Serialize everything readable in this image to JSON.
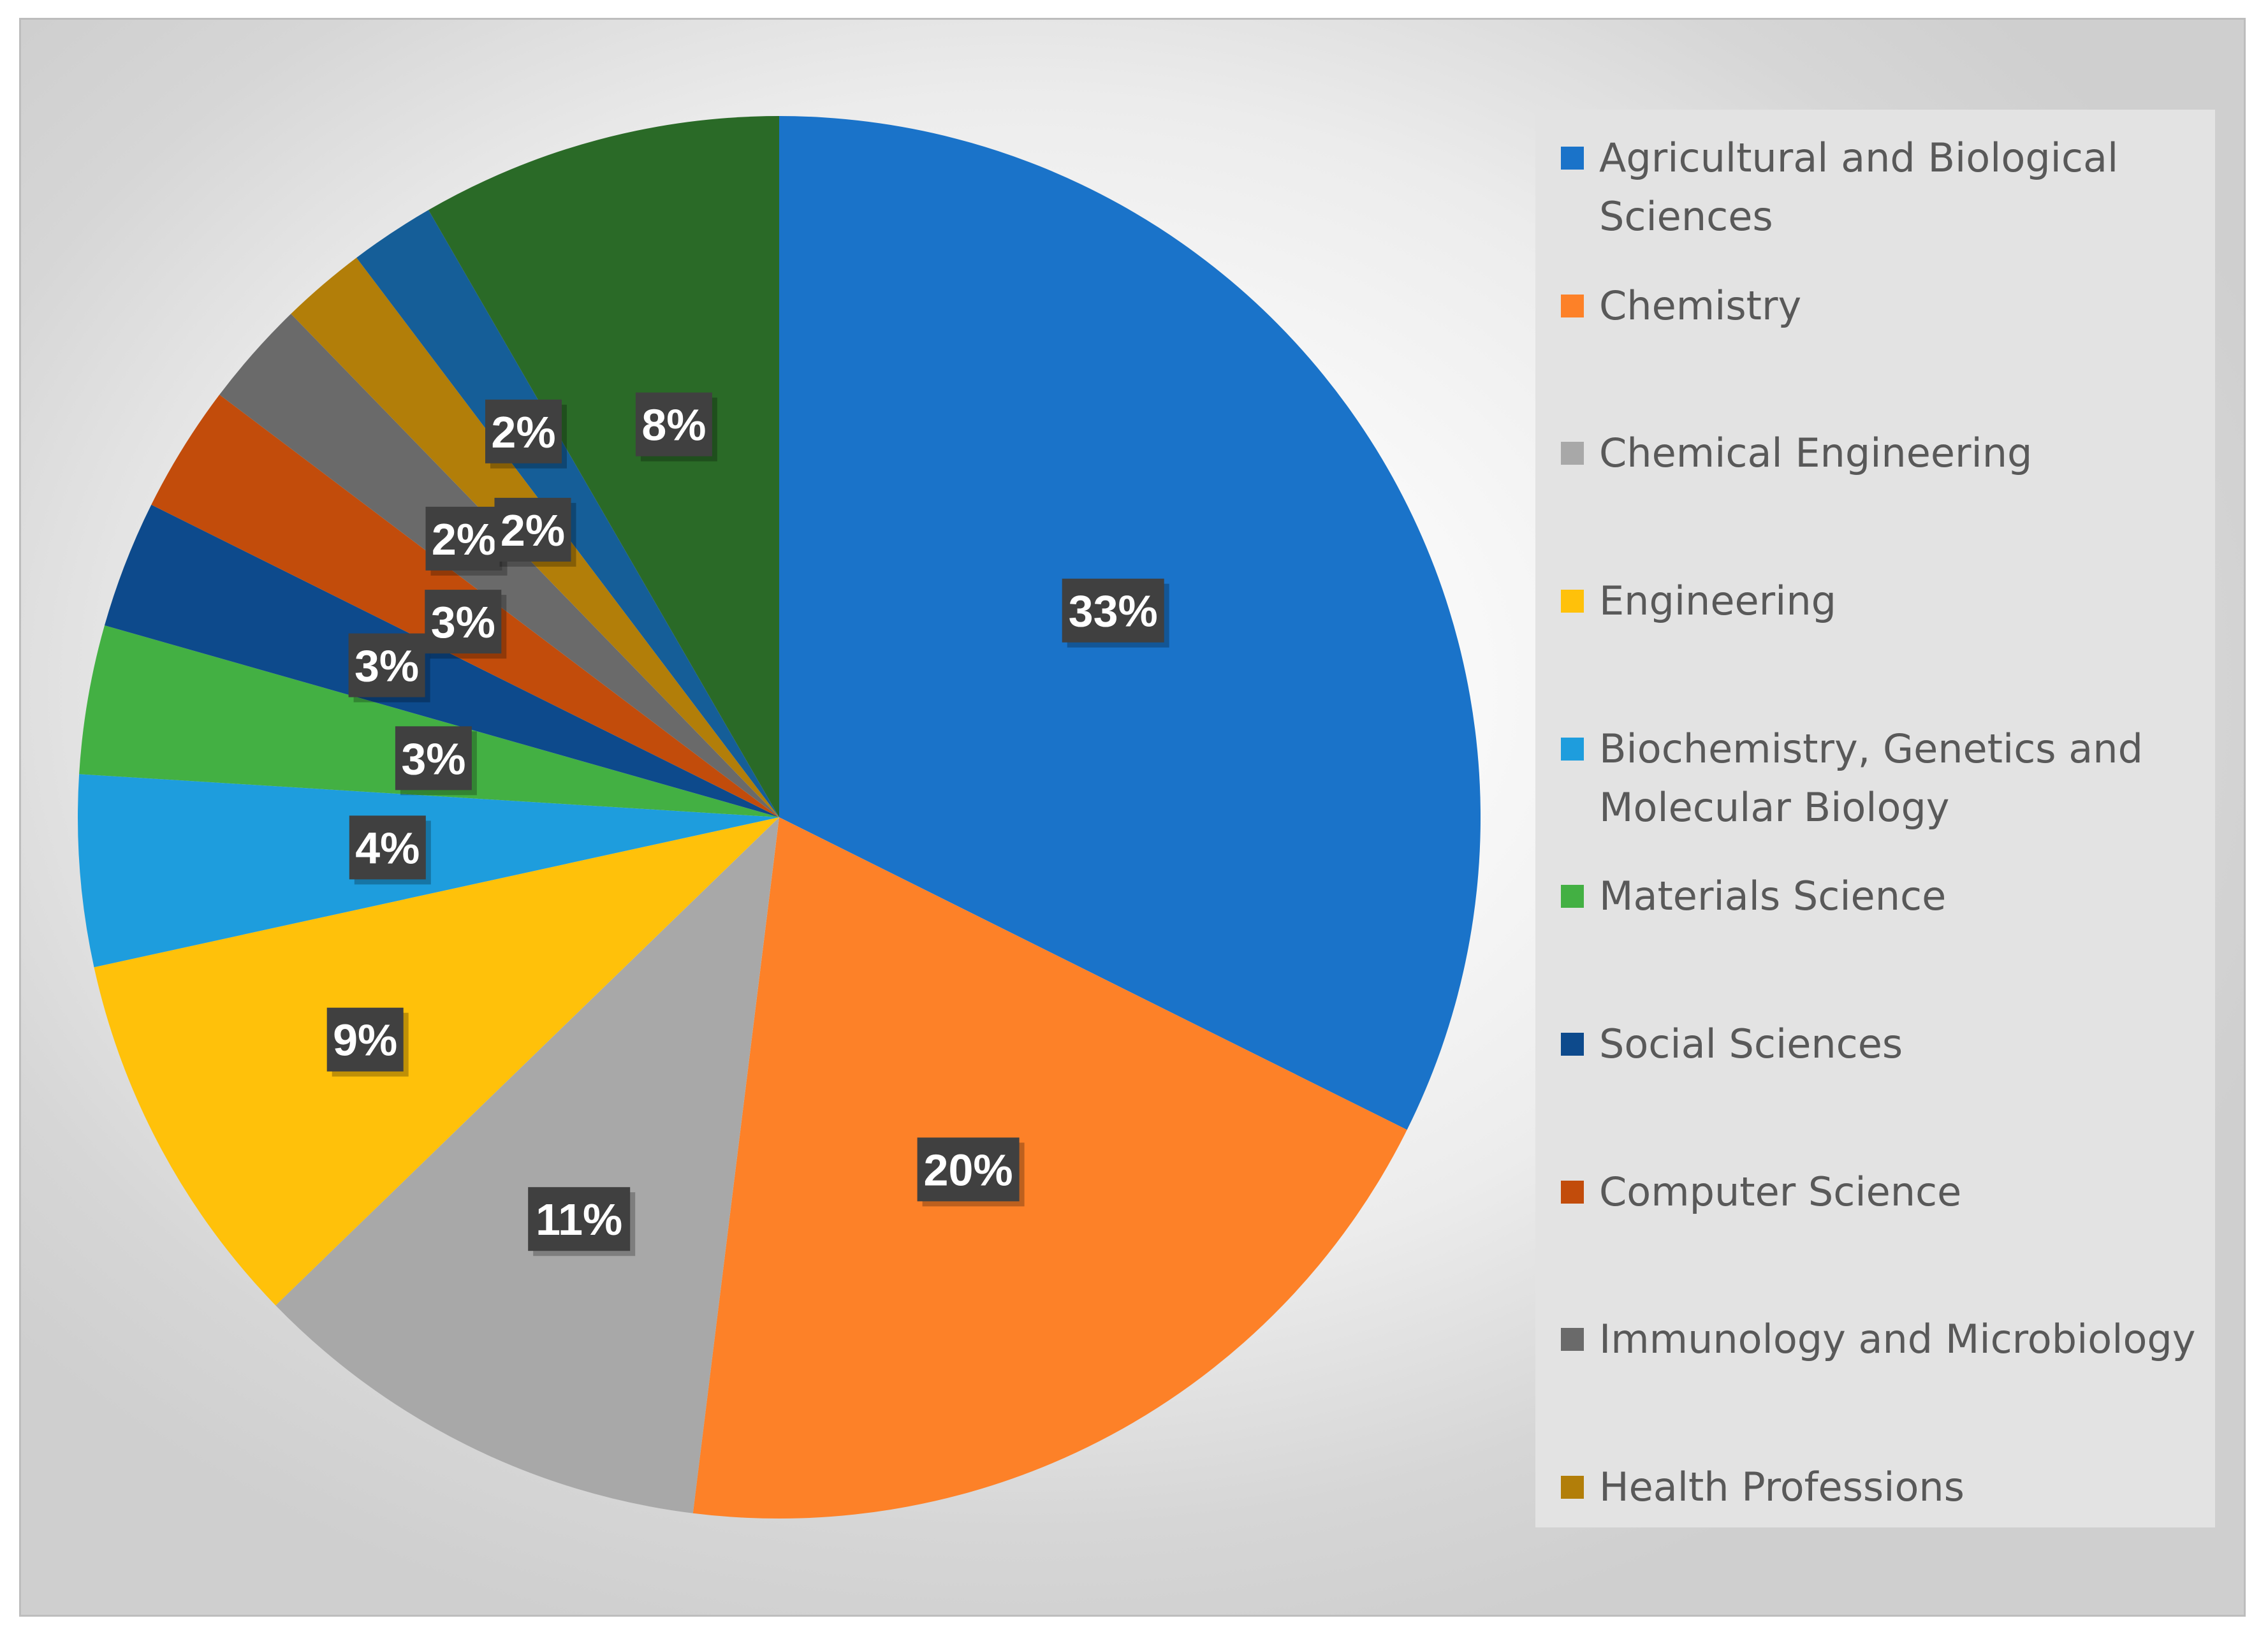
{
  "chart_data": {
    "type": "pie",
    "title": "",
    "start_angle_deg": 0,
    "direction": "clockwise",
    "slices": [
      {
        "label": "Agricultural and Biological Sciences",
        "value": 33,
        "data_label": "33%",
        "color": "#1a73c9"
      },
      {
        "label": "Chemistry",
        "value": 20,
        "data_label": "20%",
        "color": "#fd8128"
      },
      {
        "label": "Chemical Engineering",
        "value": 11,
        "data_label": "11%",
        "color": "#a8a8a8"
      },
      {
        "label": "Engineering",
        "value": 9,
        "data_label": "9%",
        "color": "#ffc10a"
      },
      {
        "label": "Biochemistry, Genetics and Molecular Biology",
        "value": 4.5,
        "data_label": "4%",
        "color": "#1e9ddd"
      },
      {
        "label": "Materials Science",
        "value": 3.5,
        "data_label": "3%",
        "color": "#43b043"
      },
      {
        "label": "Social Sciences",
        "value": 3,
        "data_label": "3%",
        "color": "#0d4a8c"
      },
      {
        "label": "Computer Science",
        "value": 3,
        "data_label": "3%",
        "color": "#c24c0b"
      },
      {
        "label": "Immunology and Microbiology",
        "value": 2.5,
        "data_label": "2%",
        "color": "#6a6a6a"
      },
      {
        "label": "Health Professions",
        "value": 2,
        "data_label": "2%",
        "color": "#b27e09"
      },
      {
        "label": "",
        "value": 2,
        "data_label": "2%",
        "color": "#155e98"
      },
      {
        "label": "",
        "value": 8.5,
        "data_label": "8%",
        "color": "#2a6a27"
      }
    ],
    "legend": {
      "position": "right",
      "entries": [
        {
          "label": "Agricultural and Biological Sciences",
          "color": "#1a73c9"
        },
        {
          "label": "Chemistry",
          "color": "#fd8128"
        },
        {
          "label": "Chemical Engineering",
          "color": "#a8a8a8"
        },
        {
          "label": "Engineering",
          "color": "#ffc10a"
        },
        {
          "label": "Biochemistry, Genetics and Molecular Biology",
          "color": "#1e9ddd"
        },
        {
          "label": "Materials Science",
          "color": "#43b043"
        },
        {
          "label": "Social Sciences",
          "color": "#0d4a8c"
        },
        {
          "label": "Computer Science",
          "color": "#c24c0b"
        },
        {
          "label": "Immunology and Microbiology",
          "color": "#6a6a6a"
        },
        {
          "label": "Health Professions",
          "color": "#b27e09"
        }
      ]
    }
  }
}
